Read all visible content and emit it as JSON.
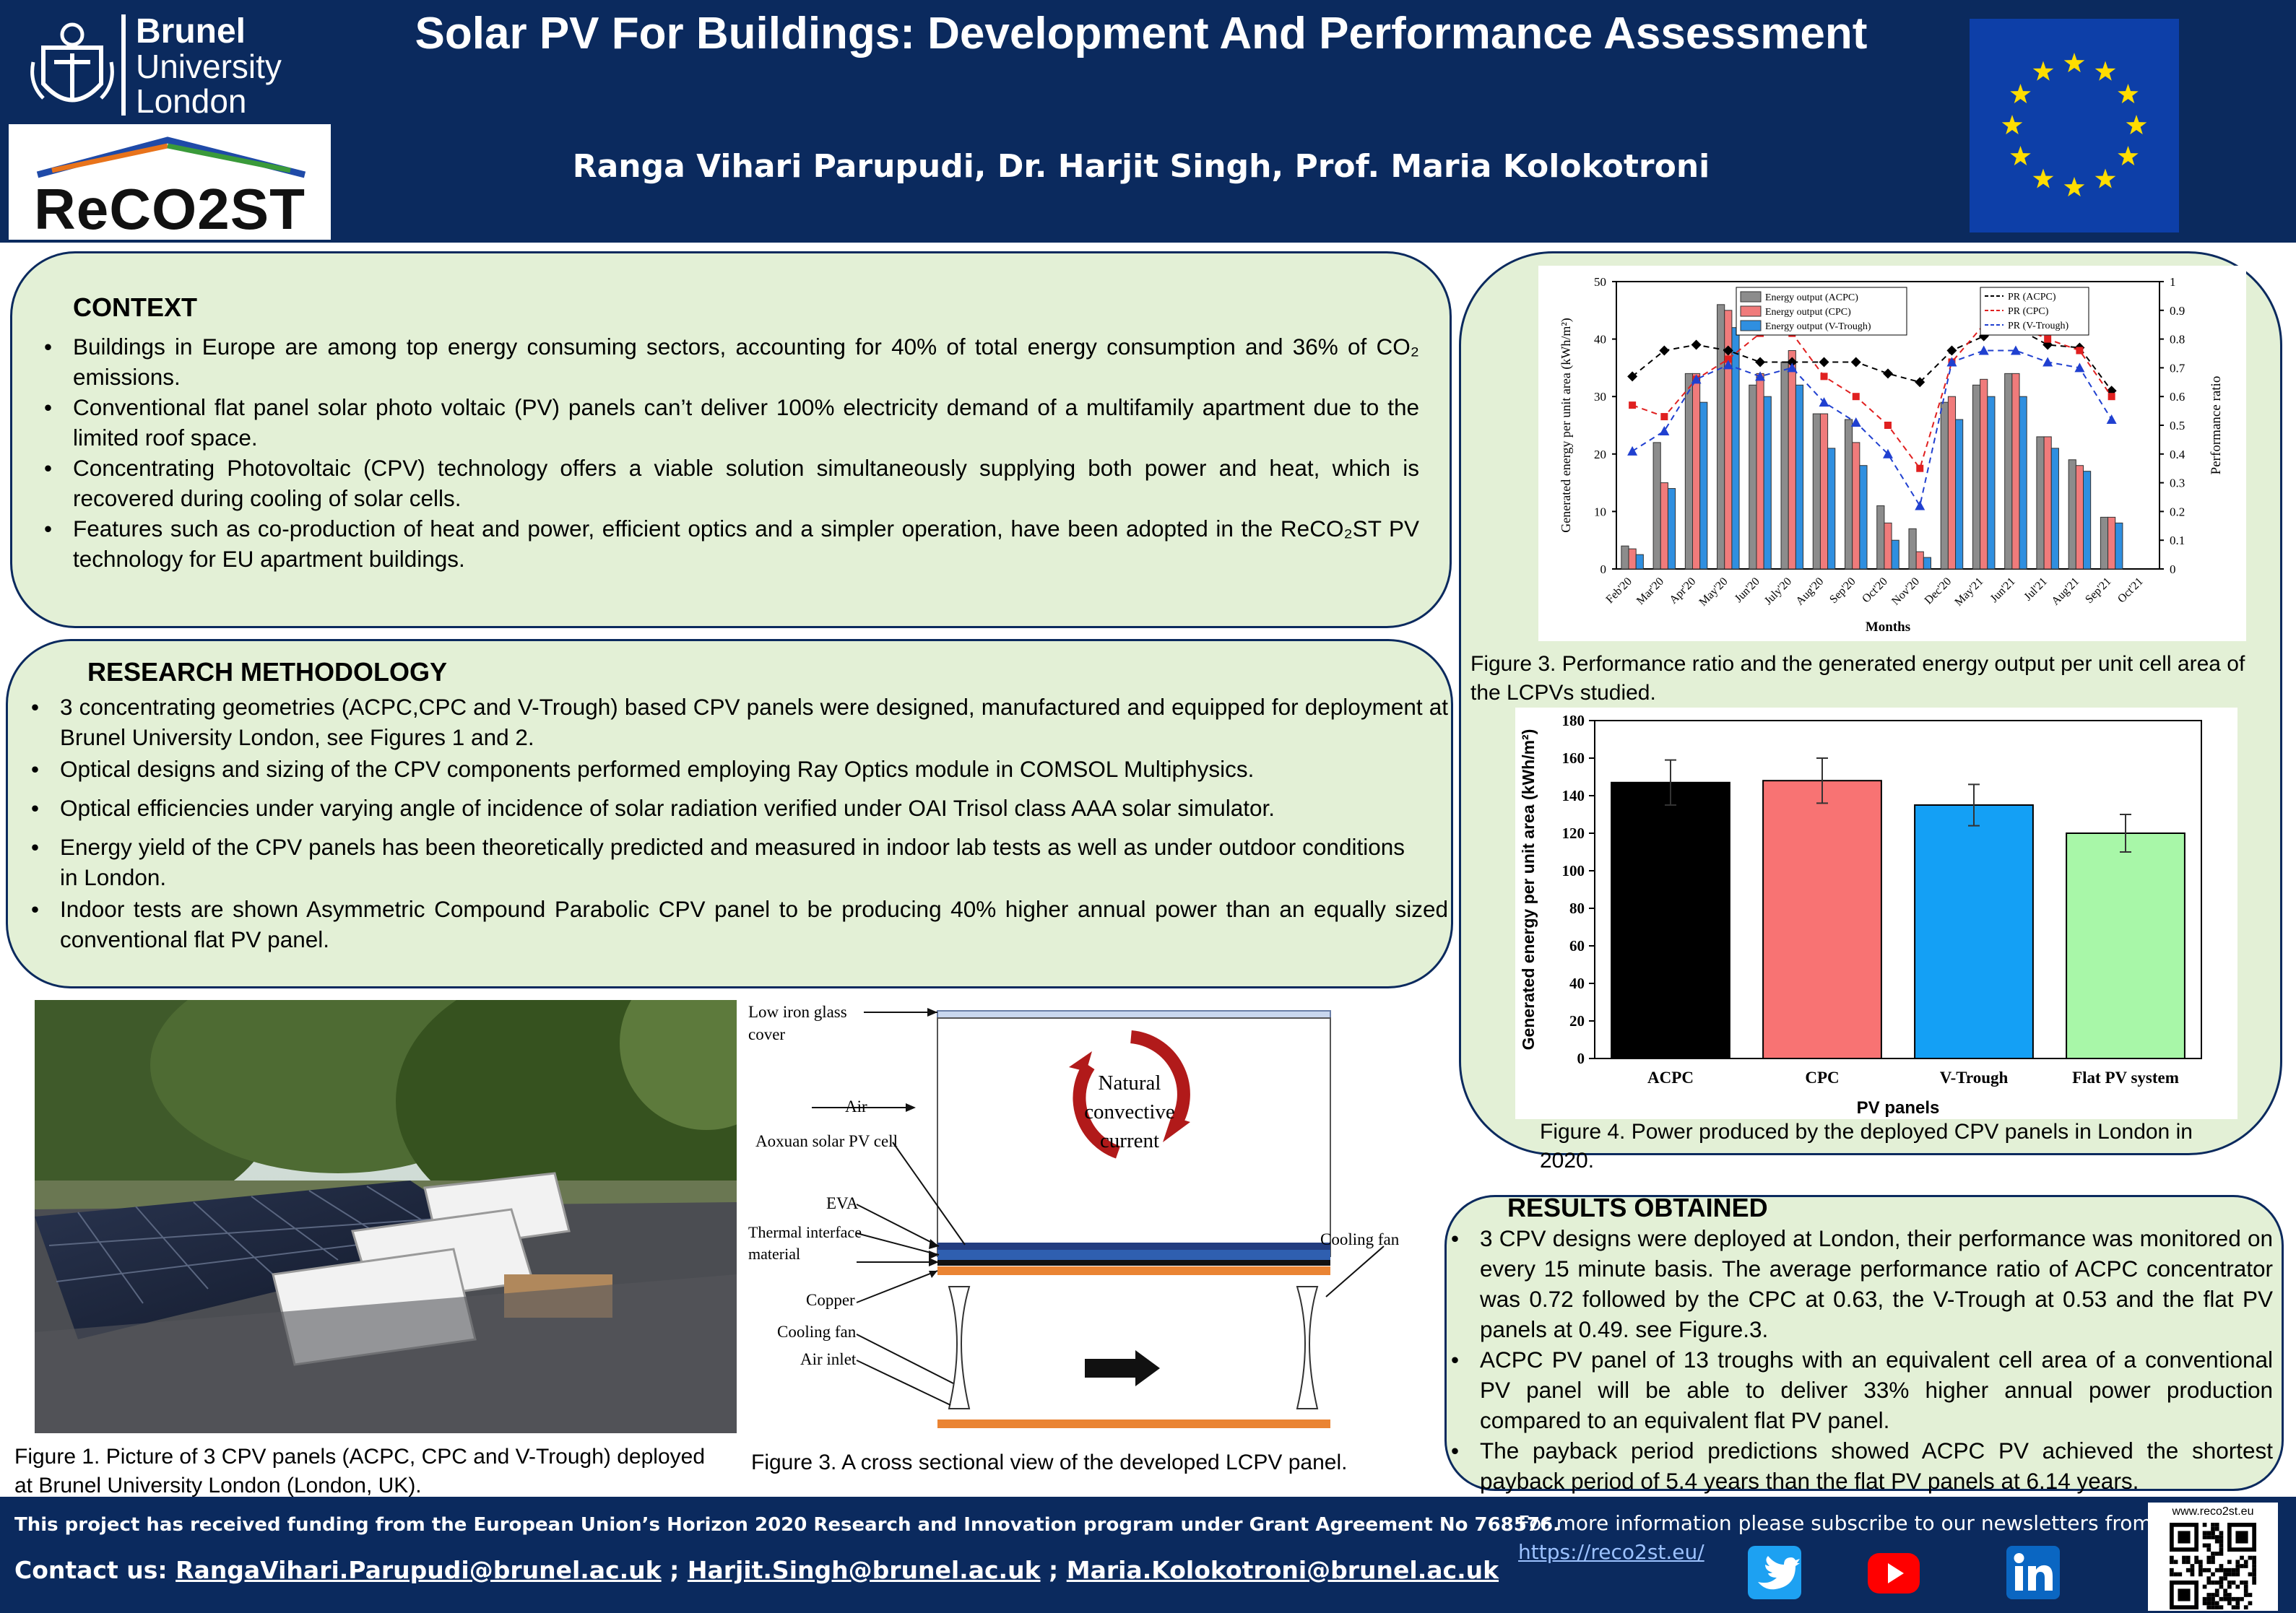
{
  "header": {
    "title": "Solar PV For Buildings: Development And Performance Assessment",
    "authors": "Ranga Vihari Parupudi, Dr. Harjit Singh, Prof. Maria Kolokotroni",
    "brunel_logo": [
      "Brunel",
      "University",
      "London"
    ],
    "reco2st_logo": "ReCO2ST"
  },
  "context": {
    "heading": "CONTEXT",
    "bullets": [
      "Buildings in Europe are among top energy consuming sectors, accounting for 40% of total energy consumption and 36% of CO₂ emissions.",
      "Conventional flat panel solar photo voltaic (PV) panels can’t deliver 100% electricity demand of a multifamily apartment due to the limited roof space.",
      "Concentrating Photovoltaic (CPV) technology offers a viable solution simultaneously supplying both power and heat, which is recovered during cooling of solar cells.",
      "Features such as co-production of heat and power, efficient optics and a simpler operation, have been adopted in the ReCO₂ST PV technology for EU apartment buildings."
    ]
  },
  "methodology": {
    "heading": "RESEARCH METHODOLOGY",
    "bullets": [
      "3 concentrating geometries (ACPC,CPC and V-Trough) based CPV panels were designed, manufactured and equipped for deployment at Brunel University London, see Figures 1 and 2.",
      "Optical designs and sizing of the CPV components performed employing  Ray Optics module in COMSOL Multiphysics.",
      "Optical efficiencies under varying angle of incidence of solar radiation  verified under OAI Trisol class AAA solar simulator.",
      "Energy yield of the CPV panels has been theoretically predicted and  measured in indoor lab tests as well as under outdoor conditions in  London.",
      "Indoor tests are shown Asymmetric Compound Parabolic CPV panel to be  producing 40% higher annual power than an equally sized conventional  flat PV panel."
    ]
  },
  "figure1": {
    "caption": "Figure 1. Picture of 3 CPV panels (ACPC, CPC and V-Trough) deployed at Brunel University London (London, UK)."
  },
  "figure_cross": {
    "caption": "Figure 3. A cross sectional view of the developed  LCPV panel.",
    "labels": {
      "low_iron": "Low iron glass cover",
      "air": "Air",
      "cell": "Aoxuan solar PV cell",
      "eva": "EVA",
      "thermal": "Thermal interface material",
      "copper": "Copper",
      "cooling_fan_left": "Cooling fan",
      "air_inlet": "Air inlet",
      "cooling_fan_right": "Cooling fan",
      "natural": [
        "Natural",
        "convective",
        "current"
      ]
    }
  },
  "figure3_caption": "Figure 3. Performance ratio and the generated energy output per unit cell area of the LCPVs studied.",
  "figure4_caption": "Figure 4. Power produced by the deployed CPV panels in London in 2020.",
  "results": {
    "heading": "RESULTS OBTAINED",
    "bullets": [
      "3 CPV designs were deployed at London, their performance was monitored on  every 15 minute basis. The average performance ratio of ACPC concentrator was 0.72 followed by the CPC at 0.63, the V-Trough at 0.53 and the flat PV panels at 0.49. see  Figure.3.",
      "ACPC PV panel of 13 troughs with an equivalent cell  area of a conventional PV panel will be able to  deliver 33% higher annual power production compared  to an equivalent flat PV panel.",
      "The payback period predictions showed ACPC PV achieved the shortest payback period of 5.4 years than the flat PV panels at 6.14 years."
    ]
  },
  "footer": {
    "funding": "This project has received funding from the European Union’s Horizon 2020 Research and Innovation program under Grant Agreement No 768576.",
    "contact_label": "Contact us:",
    "emails": [
      "RangaVihari.Parupudi@brunel.ac.uk",
      "Harjit.Singh@brunel.ac.uk",
      "Maria.Kolokotroni@brunel.ac.uk"
    ],
    "sep": ";",
    "newsletter": "For more information please subscribe to our newsletters from",
    "link": "https://reco2st.eu/",
    "qr_label": "www.reco2st.eu",
    "icons": [
      "twitter-icon",
      "youtube-icon",
      "linkedin-icon"
    ]
  },
  "chart_data": [
    {
      "type": "bar",
      "title": "",
      "xlabel": "Months",
      "ylabel": "Generated energy per unit area (kWh/m²)",
      "y2label": "Performance ratio",
      "ylim": [
        0,
        50
      ],
      "y2lim": [
        0,
        1
      ],
      "yticks": [
        "0",
        "10",
        "20",
        "30",
        "40",
        "50"
      ],
      "y2ticks": [
        "0",
        "0.1",
        "0.2",
        "0.3",
        "0.4",
        "0.5",
        "0.6",
        "0.7",
        "0.8",
        "0.9",
        "1"
      ],
      "categories": [
        "Feb'20",
        "Mar'20",
        "Apr'20",
        "May'20",
        "Jun'20",
        "July'20",
        "Aug'20",
        "Sep'20",
        "Oct'20",
        "Nov'20",
        "Dec'20",
        "May'21",
        "Jun'21",
        "Jul'21",
        "Aug'21",
        "Sep'21",
        "Oct'21"
      ],
      "series": [
        {
          "name": "Energy output (ACPC)",
          "kind": "bar",
          "color": "#8c8c8c",
          "values": [
            4,
            22,
            34,
            46,
            32,
            36,
            27,
            26,
            11,
            7,
            29,
            32,
            34,
            23,
            19,
            9,
            0
          ]
        },
        {
          "name": "Energy output (CPC)",
          "kind": "bar",
          "color": "#f07b7b",
          "values": [
            3.5,
            15,
            34,
            45,
            34,
            38,
            27,
            22,
            8,
            3,
            30,
            33,
            34,
            23,
            18,
            9,
            0
          ]
        },
        {
          "name": "Energy output (V-Trough)",
          "kind": "bar",
          "color": "#2f8fe0",
          "values": [
            2.5,
            14,
            29,
            42,
            30,
            32,
            21,
            18,
            5,
            2,
            26,
            30,
            30,
            21,
            17,
            8,
            0
          ]
        },
        {
          "name": "PR (ACPC)",
          "kind": "line",
          "color": "#000000",
          "values": [
            0.67,
            0.76,
            0.78,
            0.76,
            0.72,
            0.72,
            0.72,
            0.72,
            0.68,
            0.65,
            0.76,
            0.81,
            0.84,
            0.78,
            0.77,
            0.62,
            null
          ]
        },
        {
          "name": "PR (CPC)",
          "kind": "line",
          "color": "#e02020",
          "values": [
            0.57,
            0.53,
            0.66,
            0.73,
            0.82,
            0.82,
            0.67,
            0.6,
            0.5,
            0.35,
            0.72,
            0.85,
            0.85,
            0.8,
            0.76,
            0.6,
            null
          ]
        },
        {
          "name": "PR (V-Trough)",
          "kind": "line",
          "color": "#2040d0",
          "values": [
            0.41,
            0.48,
            0.66,
            0.71,
            0.67,
            0.7,
            0.58,
            0.51,
            0.4,
            0.22,
            0.72,
            0.76,
            0.76,
            0.72,
            0.7,
            0.52,
            null
          ]
        }
      ]
    },
    {
      "type": "bar",
      "title": "",
      "xlabel": "PV panels",
      "ylabel": "Generated energy per unit area (kWh/m²)",
      "ylim": [
        0,
        180
      ],
      "yticks": [
        "0",
        "20",
        "40",
        "60",
        "80",
        "100",
        "120",
        "140",
        "160",
        "180"
      ],
      "categories": [
        "ACPC",
        "CPC",
        "V-Trough",
        "Flat PV system"
      ],
      "values": [
        147,
        148,
        135,
        120
      ],
      "errors": [
        12,
        12,
        11,
        10
      ],
      "colors": [
        "#000000",
        "#f87373",
        "#14a0f5",
        "#a8f7a8"
      ]
    }
  ]
}
